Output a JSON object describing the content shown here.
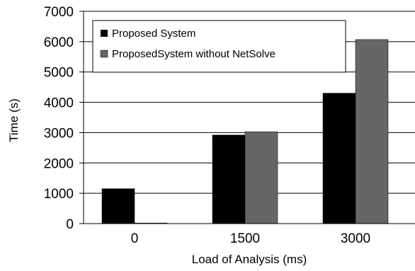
{
  "chart_data": {
    "type": "bar",
    "xlabel": "Load of Analysis (ms)",
    "ylabel": "Time (s)",
    "categories": [
      "0",
      "1500",
      "3000"
    ],
    "ylim": [
      0,
      7000
    ],
    "yticks": [
      0,
      1000,
      2000,
      3000,
      4000,
      5000,
      6000,
      7000
    ],
    "grid": true,
    "legend_position": "top-left",
    "series": [
      {
        "name": "Proposed System",
        "values": [
          1150,
          2920,
          4300
        ],
        "color": "#000000"
      },
      {
        "name": "ProposedSystem without NetSolve",
        "values": [
          20,
          3030,
          6070
        ],
        "color": "#666666"
      }
    ]
  }
}
